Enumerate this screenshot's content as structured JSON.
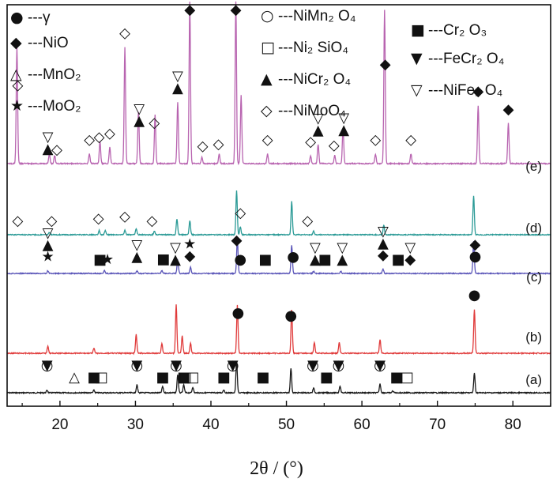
{
  "chart_data": {
    "type": "line",
    "title": "",
    "xlabel": "2θ / (°)",
    "ylabel": "",
    "xlim": [
      13,
      85
    ],
    "x_ticks": [
      "20",
      "30",
      "40",
      "50",
      "60",
      "70",
      "80"
    ],
    "grid": false,
    "legend_placement": "top",
    "legend": [
      {
        "symbol": "●",
        "text": "---γ"
      },
      {
        "symbol": "◆",
        "text": "---NiO"
      },
      {
        "symbol": "△",
        "text": "---MnO₂"
      },
      {
        "symbol": "★",
        "text": "---MoO₂"
      },
      {
        "symbol": "○",
        "text": "---NiMn₂ O₄"
      },
      {
        "symbol": "□",
        "text": "---Ni₂ SiO₄"
      },
      {
        "symbol": "▲",
        "text": "---NiCr₂ O₄"
      },
      {
        "symbol": "◇",
        "text": "---NiMoO₄"
      },
      {
        "symbol": "■",
        "text": "---Cr₂ O₃"
      },
      {
        "symbol": "▼",
        "text": "---FeCr₂ O₄"
      },
      {
        "symbol": "▽",
        "text": "---NiFe₂ O₄"
      }
    ],
    "series": [
      {
        "label": "(a)",
        "color": "#1a1a1a",
        "peaks": [
          [
            18.3,
            0.08
          ],
          [
            24.5,
            0.08
          ],
          [
            30.2,
            0.25
          ],
          [
            33.6,
            0.2
          ],
          [
            35.6,
            0.58
          ],
          [
            36.4,
            0.25
          ],
          [
            37.6,
            0.18
          ],
          [
            41.7,
            0.1
          ],
          [
            43.4,
            1.0
          ],
          [
            50.6,
            0.78
          ],
          [
            53.6,
            0.15
          ],
          [
            57.1,
            0.22
          ],
          [
            62.4,
            0.28
          ],
          [
            64.1,
            0.06
          ],
          [
            74.9,
            0.62
          ]
        ]
      },
      {
        "label": "(b)",
        "color": "#e03a3a",
        "peaks": [
          [
            18.4,
            0.15
          ],
          [
            24.5,
            0.1
          ],
          [
            30.1,
            0.38
          ],
          [
            33.5,
            0.2
          ],
          [
            35.4,
            1.0
          ],
          [
            36.2,
            0.35
          ],
          [
            37.3,
            0.2
          ],
          [
            43.5,
            0.98
          ],
          [
            50.7,
            0.88
          ],
          [
            53.7,
            0.22
          ],
          [
            57.0,
            0.22
          ],
          [
            62.4,
            0.28
          ],
          [
            74.9,
            0.9
          ]
        ]
      },
      {
        "label": "(c)",
        "color": "#5a55b8",
        "peaks": [
          [
            18.4,
            0.08
          ],
          [
            25.9,
            0.08
          ],
          [
            30.2,
            0.08
          ],
          [
            33.5,
            0.08
          ],
          [
            35.6,
            0.38
          ],
          [
            37.3,
            0.18
          ],
          [
            43.5,
            1.0
          ],
          [
            50.7,
            0.82
          ],
          [
            53.6,
            0.06
          ],
          [
            57.2,
            0.06
          ],
          [
            62.8,
            0.12
          ],
          [
            74.8,
            0.92
          ]
        ]
      },
      {
        "label": "(d)",
        "color": "#2a9a96",
        "peaks": [
          [
            18.6,
            0.05
          ],
          [
            25.2,
            0.1
          ],
          [
            26.0,
            0.1
          ],
          [
            28.6,
            0.1
          ],
          [
            30.1,
            0.14
          ],
          [
            32.5,
            0.08
          ],
          [
            35.5,
            0.36
          ],
          [
            37.2,
            0.32
          ],
          [
            43.4,
            1.0
          ],
          [
            43.9,
            0.18
          ],
          [
            50.7,
            0.75
          ],
          [
            53.6,
            0.08
          ],
          [
            62.9,
            0.22
          ],
          [
            74.8,
            0.88
          ]
        ]
      },
      {
        "label": "(e)",
        "color": "#b864b0",
        "peaks": [
          [
            14.3,
            0.72
          ],
          [
            18.6,
            0.06
          ],
          [
            19.3,
            0.05
          ],
          [
            23.9,
            0.06
          ],
          [
            25.3,
            0.14
          ],
          [
            26.6,
            0.1
          ],
          [
            28.6,
            0.72
          ],
          [
            30.4,
            0.32
          ],
          [
            32.6,
            0.3
          ],
          [
            35.6,
            0.38
          ],
          [
            37.2,
            1.0
          ],
          [
            38.8,
            0.04
          ],
          [
            41.1,
            0.06
          ],
          [
            43.3,
            1.0
          ],
          [
            44.0,
            0.42
          ],
          [
            47.5,
            0.06
          ],
          [
            53.2,
            0.05
          ],
          [
            54.2,
            0.12
          ],
          [
            56.4,
            0.05
          ],
          [
            57.5,
            0.22
          ],
          [
            61.8,
            0.06
          ],
          [
            63.0,
            0.95
          ],
          [
            66.5,
            0.06
          ],
          [
            75.4,
            0.36
          ],
          [
            79.4,
            0.25
          ]
        ]
      }
    ],
    "markers": [
      {
        "trace": "(a)",
        "items": [
          [
            18.3,
            "○"
          ],
          [
            18.3,
            "▼"
          ],
          [
            21.9,
            "△"
          ],
          [
            24.5,
            "■"
          ],
          [
            25.5,
            "□"
          ],
          [
            30.2,
            "○"
          ],
          [
            30.2,
            "▼"
          ],
          [
            33.6,
            "■"
          ],
          [
            35.4,
            "○"
          ],
          [
            35.4,
            "▼"
          ],
          [
            36.4,
            "■"
          ],
          [
            36.6,
            "□"
          ],
          [
            37.6,
            "□"
          ],
          [
            41.7,
            "■"
          ],
          [
            42.9,
            "○"
          ],
          [
            42.9,
            "▼"
          ],
          [
            46.9,
            "■"
          ],
          [
            53.5,
            "○"
          ],
          [
            53.5,
            "▼"
          ],
          [
            55.3,
            "■"
          ],
          [
            56.9,
            "○"
          ],
          [
            56.9,
            "▼"
          ],
          [
            62.4,
            "○"
          ],
          [
            62.4,
            "▼"
          ],
          [
            64.6,
            "■"
          ],
          [
            66.0,
            "□"
          ]
        ]
      },
      {
        "trace": "(b)",
        "items": [
          [
            43.6,
            "●"
          ],
          [
            50.6,
            "●"
          ],
          [
            74.9,
            "●"
          ]
        ]
      },
      {
        "trace": "(c)",
        "items": [
          [
            18.4,
            "★"
          ],
          [
            18.4,
            "▲"
          ],
          [
            18.4,
            "▽"
          ],
          [
            25.3,
            "■"
          ],
          [
            26.3,
            "★"
          ],
          [
            30.2,
            "▲"
          ],
          [
            30.2,
            "▽"
          ],
          [
            33.7,
            "■"
          ],
          [
            35.3,
            "▲"
          ],
          [
            35.3,
            "▽"
          ],
          [
            37.2,
            "◆"
          ],
          [
            37.2,
            "★"
          ],
          [
            43.4,
            "◆"
          ],
          [
            43.9,
            "●"
          ],
          [
            47.2,
            "■"
          ],
          [
            50.9,
            "●"
          ],
          [
            53.8,
            "▲"
          ],
          [
            53.8,
            "▽"
          ],
          [
            55.1,
            "■"
          ],
          [
            57.4,
            "▲"
          ],
          [
            57.4,
            "▽"
          ],
          [
            62.8,
            "◆"
          ],
          [
            62.8,
            "▲"
          ],
          [
            62.8,
            "▽"
          ],
          [
            64.8,
            "■"
          ],
          [
            66.4,
            "◆"
          ],
          [
            66.4,
            "▽"
          ],
          [
            75.0,
            "●"
          ],
          [
            75.0,
            "◆"
          ]
        ]
      },
      {
        "trace": "(d)",
        "items": [
          [
            14.4,
            "◇"
          ],
          [
            18.9,
            "◇"
          ],
          [
            25.1,
            "◇"
          ],
          [
            28.6,
            "◇"
          ],
          [
            32.2,
            "◇"
          ],
          [
            43.9,
            "◇"
          ],
          [
            52.8,
            "◇"
          ]
        ]
      },
      {
        "trace": "(e)",
        "items": [
          [
            14.4,
            "◇"
          ],
          [
            18.4,
            "▲"
          ],
          [
            18.4,
            "▽"
          ],
          [
            19.6,
            "◇"
          ],
          [
            23.9,
            "◇"
          ],
          [
            25.2,
            "◇"
          ],
          [
            26.6,
            "◇"
          ],
          [
            28.6,
            "◇"
          ],
          [
            30.5,
            "▲"
          ],
          [
            30.5,
            "▽"
          ],
          [
            32.5,
            "◇"
          ],
          [
            35.6,
            "▲"
          ],
          [
            35.6,
            "▽"
          ],
          [
            37.2,
            "◆"
          ],
          [
            38.9,
            "◇"
          ],
          [
            41.0,
            "◇"
          ],
          [
            43.3,
            "◆"
          ],
          [
            47.5,
            "◇"
          ],
          [
            53.2,
            "◇"
          ],
          [
            54.2,
            "▲"
          ],
          [
            54.2,
            "▽"
          ],
          [
            56.3,
            "◇"
          ],
          [
            57.6,
            "▲"
          ],
          [
            57.6,
            "▽"
          ],
          [
            61.8,
            "◇"
          ],
          [
            63.1,
            "◆"
          ],
          [
            66.5,
            "◇"
          ],
          [
            75.4,
            "◆"
          ],
          [
            79.4,
            "◆"
          ]
        ]
      }
    ]
  }
}
